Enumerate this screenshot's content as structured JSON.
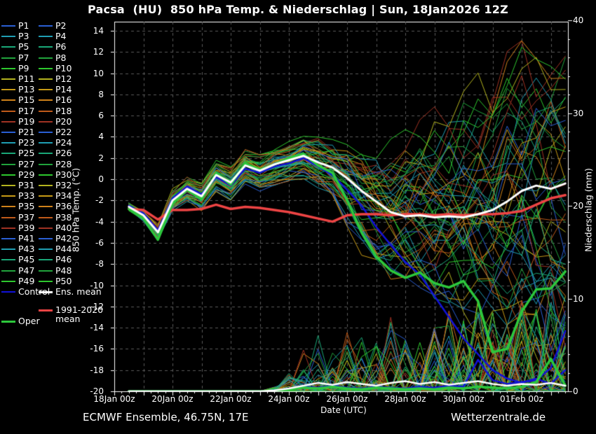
{
  "header": {
    "title": "Pacsa  (HU)  850 hPa Temp. & Niederschlag | Sun, 18Jan2026 12Z"
  },
  "footer": {
    "left": "ECMWF Ensemble, 46.75N, 17E",
    "right": "Wetterzentrale.de"
  },
  "legend": {
    "member_labels": [
      "P1",
      "P2",
      "P3",
      "P4",
      "P5",
      "P6",
      "P7",
      "P8",
      "P9",
      "P10",
      "P11",
      "P12",
      "P13",
      "P14",
      "P15",
      "P16",
      "P17",
      "P18",
      "P19",
      "P20",
      "P21",
      "P22",
      "P23",
      "P24",
      "P25",
      "P26",
      "P27",
      "P28",
      "P29",
      "P30",
      "P31",
      "P32",
      "P33",
      "P34",
      "P35",
      "P36",
      "P37",
      "P38",
      "P39",
      "P40",
      "P41",
      "P42",
      "P43",
      "P44",
      "P45",
      "P46",
      "P47",
      "P48",
      "P49",
      "P50"
    ],
    "control": {
      "label": "Control",
      "color": "#1212d8"
    },
    "ens_mean": {
      "label": "Ens. mean",
      "color": "#ffffff"
    },
    "climate": {
      "label_line1": "1991-2020",
      "label_line2": "mean",
      "color": "#ee4444"
    },
    "oper": {
      "label": "Oper",
      "color": "#2dc83c"
    }
  },
  "chart_data": {
    "type": "line",
    "title": "Pacsa  (HU)  850 hPa Temp. & Niederschlag | Sun, 18Jan2026 12Z",
    "x_axis": {
      "label": "Date (UTC)",
      "ticks": [
        {
          "label": "18Jan 00z",
          "day": 0
        },
        {
          "label": "20Jan 00z",
          "day": 2
        },
        {
          "label": "22Jan 00z",
          "day": 4
        },
        {
          "label": "24Jan 00z",
          "day": 6
        },
        {
          "label": "26Jan 00z",
          "day": 8
        },
        {
          "label": "28Jan 00z",
          "day": 10
        },
        {
          "label": "30Jan 00z",
          "day": 12
        },
        {
          "label": "01Feb 00z",
          "day": 14
        }
      ],
      "gridline_interval_hours": 24,
      "minor_tick_hours": 6
    },
    "y_left": {
      "label": "850 hPa Temp. (°C)",
      "ticks": [
        14,
        12,
        10,
        8,
        6,
        4,
        2,
        0,
        -2,
        -4,
        -6,
        -8,
        -10,
        -12,
        -14,
        -16,
        -18,
        -20
      ],
      "min": -20,
      "max": 14,
      "grid": "dashed"
    },
    "y_right": {
      "label": "Niederschlag (mm)",
      "ticks": [
        0,
        10,
        20,
        30,
        40
      ],
      "minor_step": 2,
      "min": 0,
      "max": 40
    },
    "time_hours": [
      12,
      24,
      36,
      48,
      60,
      72,
      84,
      96,
      108,
      120,
      132,
      144,
      156,
      168,
      180,
      192,
      204,
      216,
      228,
      240,
      252,
      264,
      276,
      288,
      300,
      312,
      324,
      336,
      348,
      360,
      372
    ],
    "series": {
      "ens_mean_temp": {
        "name": "Ens. mean",
        "color": "#ffffff",
        "width": 3,
        "values": [
          -2.6,
          -3.4,
          -5.0,
          -2.0,
          -0.9,
          -1.6,
          0.4,
          -0.3,
          1.3,
          0.8,
          1.4,
          1.8,
          2.2,
          1.6,
          1.1,
          0.1,
          -1.1,
          -2.1,
          -3.1,
          -3.5,
          -3.4,
          -3.6,
          -3.5,
          -3.6,
          -3.3,
          -2.9,
          -2.1,
          -1.1,
          -0.6,
          -0.9,
          -0.4
        ]
      },
      "oper_temp": {
        "name": "Oper",
        "color": "#2dc83c",
        "width": 3.5,
        "values": [
          -2.8,
          -3.7,
          -5.7,
          -2.3,
          -1.0,
          -1.9,
          0.6,
          -0.5,
          1.5,
          0.9,
          1.4,
          2.0,
          2.4,
          1.3,
          0.6,
          -2.0,
          -5.0,
          -7.3,
          -8.6,
          -9.3,
          -8.8,
          -9.8,
          -10.2,
          -9.6,
          -11.5,
          -16.3,
          -16.0,
          -12.5,
          -10.4,
          -10.3,
          -8.7
        ]
      },
      "control_temp": {
        "name": "Control",
        "color": "#1212d8",
        "width": 2.5,
        "values": [
          -2.5,
          -3.2,
          -4.8,
          -1.8,
          -0.7,
          -1.4,
          0.2,
          -0.6,
          1.0,
          0.6,
          1.2,
          1.5,
          2.0,
          1.2,
          0.4,
          -1.0,
          -2.5,
          -4.5,
          -6.2,
          -7.8,
          -9.0,
          -11.0,
          -13.0,
          -15.0,
          -16.5,
          -18.0,
          -18.8,
          -19.2,
          -18.8,
          -19.3,
          -18.0
        ]
      },
      "climate_mean_temp": {
        "name": "1991-2020 mean",
        "color": "#ee4444",
        "width": 3.5,
        "values": [
          -2.8,
          -2.9,
          -3.8,
          -2.9,
          -2.9,
          -2.8,
          -2.4,
          -2.8,
          -2.6,
          -2.7,
          -2.9,
          -3.1,
          -3.4,
          -3.7,
          -4.0,
          -3.4,
          -3.3,
          -3.3,
          -3.4,
          -3.3,
          -3.3,
          -3.4,
          -3.3,
          -3.4,
          -3.3,
          -3.3,
          -3.2,
          -3.0,
          -2.4,
          -1.8,
          -1.5
        ]
      },
      "ens_mean_precip": {
        "name": "Ens. mean precip",
        "color": "#ffffff",
        "width": 2.5,
        "values": [
          0,
          0,
          0,
          0,
          0,
          0,
          0,
          0,
          0,
          0,
          0.1,
          0.3,
          0.6,
          0.9,
          0.7,
          1.0,
          0.8,
          0.6,
          0.9,
          1.1,
          0.8,
          1.0,
          0.7,
          0.9,
          1.1,
          0.8,
          0.6,
          0.8,
          0.7,
          0.9,
          0.6
        ]
      },
      "oper_precip": {
        "name": "Oper precip",
        "color": "#2dc83c",
        "width": 3.5,
        "values": [
          0,
          0,
          0,
          0,
          0,
          0,
          0,
          0,
          0,
          0,
          0,
          0.2,
          0.4,
          0.3,
          0.5,
          0.3,
          0.2,
          0.4,
          0.3,
          0.2,
          0.3,
          0.2,
          0.4,
          0.3,
          0.5,
          0.4,
          0.3,
          0.5,
          1.0,
          3.5,
          0.6
        ]
      },
      "control_precip": {
        "name": "Control precip",
        "color": "#1212d8",
        "width": 2.5,
        "values": [
          0,
          0,
          0,
          0,
          0,
          0,
          0,
          0,
          0,
          0,
          0,
          0.3,
          0.5,
          0.4,
          0.6,
          0.4,
          0.3,
          0.5,
          0.4,
          0.3,
          0.5,
          0.4,
          0.6,
          0.5,
          3.4,
          1.2,
          0.8,
          1.0,
          1.2,
          2.5,
          6.5
        ]
      }
    },
    "members": {
      "count": 50,
      "seed": 20260118,
      "color_cycle": [
        "#2a5fd4",
        "#1f9eb4",
        "#1aa878",
        "#21a33c",
        "#2ec82e",
        "#b4b41e",
        "#c79a16",
        "#d0821a",
        "#bf5a1a",
        "#a03223"
      ],
      "color_assignment": "consecutive pairs share a color (P1/P2, P3/P4, ...)",
      "temp_envelope_min": [
        -3.0,
        -4.2,
        -6.2,
        -3.2,
        -2.2,
        -3.2,
        -1.2,
        -2.0,
        -0.5,
        -1.2,
        -0.6,
        -0.2,
        0.0,
        -1.2,
        -2.5,
        -6.0,
        -7.5,
        -8.5,
        -9.5,
        -10.5,
        -11.5,
        -12.5,
        -13.5,
        -14.5,
        -15.5,
        -16.5,
        -17.5,
        -18.5,
        -18.5,
        -19.3,
        -19.3
      ],
      "temp_envelope_max": [
        -2.2,
        -2.6,
        -3.8,
        -0.8,
        0.4,
        -0.2,
        1.8,
        1.2,
        2.8,
        2.4,
        3.2,
        3.6,
        4.4,
        4.2,
        4.0,
        3.4,
        4.2,
        4.4,
        5.2,
        5.4,
        6.2,
        7.0,
        8.2,
        9.0,
        10.4,
        11.0,
        12.2,
        13.2,
        12.4,
        11.2,
        12.2
      ],
      "precip_member_max": [
        0,
        0,
        0,
        0,
        0,
        0,
        0,
        0,
        0,
        0,
        0.5,
        2,
        4.5,
        6.5,
        5,
        6.5,
        6,
        5.5,
        8,
        7,
        6,
        7.5,
        9,
        8,
        10,
        9,
        8,
        10,
        9,
        12,
        9
      ]
    }
  }
}
